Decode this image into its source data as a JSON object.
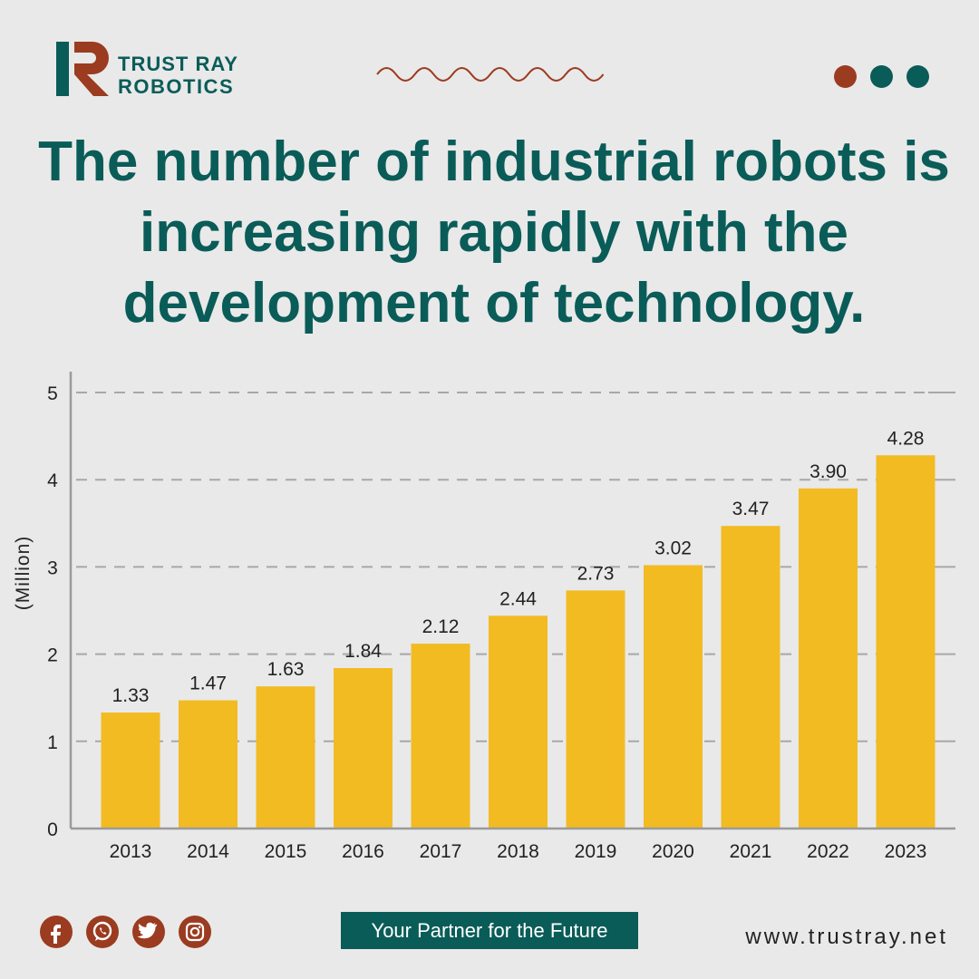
{
  "brand": {
    "name_line1": "TRUST RAY",
    "name_line2": "ROBOTICS",
    "logo_letter": "R",
    "colors": {
      "teal": "#0a5c58",
      "rust": "#9b3b20",
      "bar": "#f2bb22"
    }
  },
  "headline": "The number of industrial robots is increasing rapidly with the development of technology.",
  "chart_data": {
    "type": "bar",
    "categories": [
      "2013",
      "2014",
      "2015",
      "2016",
      "2017",
      "2018",
      "2019",
      "2020",
      "2021",
      "2022",
      "2023"
    ],
    "values": [
      1.33,
      1.47,
      1.63,
      1.84,
      2.12,
      2.44,
      2.73,
      3.02,
      3.47,
      3.9,
      4.28
    ],
    "value_labels": [
      "1.33",
      "1.47",
      "1.63",
      "1.84",
      "2.12",
      "2.44",
      "2.73",
      "3.02",
      "3.47",
      "3.90",
      "4.28"
    ],
    "ylabel": "(Million)",
    "xlabel": "",
    "ylim": [
      0,
      5
    ],
    "yticks": [
      "0",
      "1",
      "2",
      "3",
      "4",
      "5"
    ],
    "grid": "dashed horizontal",
    "bar_color": "#f2bb22"
  },
  "footer": {
    "social_icons": [
      "facebook-icon",
      "whatsapp-icon",
      "twitter-icon",
      "instagram-icon"
    ],
    "tagline": "Your Partner for the Future",
    "website": "www.trustray.net"
  }
}
